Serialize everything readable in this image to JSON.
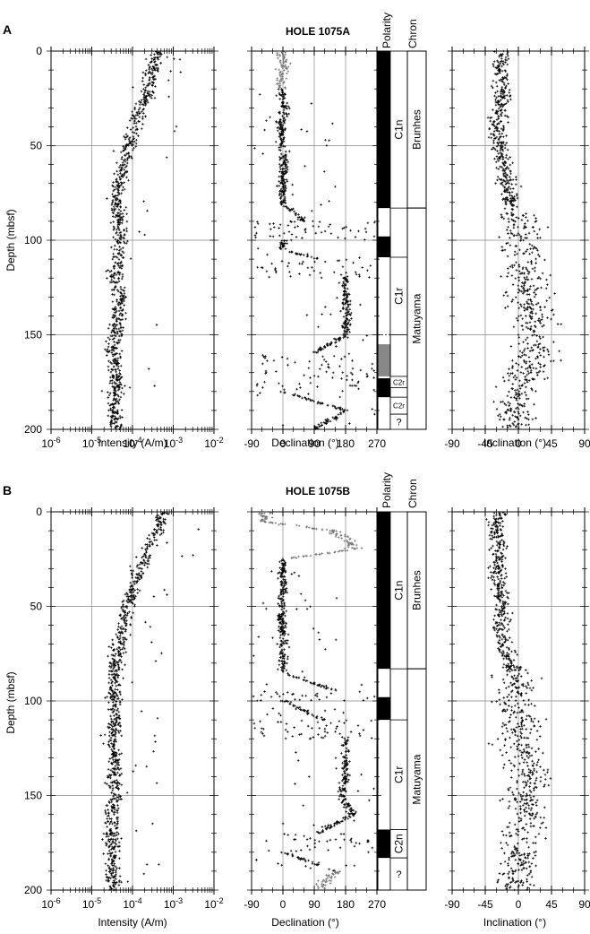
{
  "chart_data": [
    {
      "panel_letter": "A",
      "title": "HOLE 1075A",
      "type": "scatter",
      "ylabel": "Depth (mbsf)",
      "ylim": [
        0,
        200
      ],
      "yticks": [
        "0",
        "50",
        "100",
        "150",
        "200"
      ],
      "intensity": {
        "xlabel": "Intensity (A/m)",
        "scale": "log",
        "xlim": [
          1e-06,
          0.01
        ],
        "xticks": [
          "10-6",
          "10-5",
          "10-4",
          "10-3",
          "10-2"
        ],
        "trend": [
          [
            0,
            0.0004
          ],
          [
            10,
            0.0003
          ],
          [
            20,
            0.00025
          ],
          [
            30,
            0.00016
          ],
          [
            40,
            0.00011
          ],
          [
            50,
            8e-05
          ],
          [
            60,
            6e-05
          ],
          [
            70,
            4.5e-05
          ],
          [
            80,
            4e-05
          ],
          [
            90,
            5e-05
          ],
          [
            100,
            5e-05
          ],
          [
            110,
            4.5e-05
          ],
          [
            120,
            3.5e-05
          ],
          [
            130,
            5e-05
          ],
          [
            140,
            4.5e-05
          ],
          [
            150,
            4e-05
          ],
          [
            160,
            3.5e-05
          ],
          [
            170,
            4e-05
          ],
          [
            180,
            4e-05
          ],
          [
            190,
            3.5e-05
          ],
          [
            200,
            4e-05
          ]
        ]
      },
      "declination": {
        "xlabel": "Declination (°)",
        "xlim": [
          -90,
          270
        ],
        "xticks": [
          "-90",
          "0",
          "90",
          "180",
          "270"
        ],
        "trend": [
          [
            0,
            0,
            "g"
          ],
          [
            15,
            0,
            "g"
          ],
          [
            20,
            -5,
            "b"
          ],
          [
            30,
            5,
            "b"
          ],
          [
            40,
            -5,
            "b"
          ],
          [
            50,
            0,
            "b"
          ],
          [
            60,
            5,
            "b"
          ],
          [
            70,
            0,
            "b"
          ],
          [
            80,
            0,
            "b"
          ],
          [
            90,
            60,
            "s"
          ],
          [
            100,
            0,
            "b"
          ],
          [
            105,
            0,
            "b"
          ],
          [
            110,
            100,
            "s"
          ],
          [
            120,
            180,
            "b"
          ],
          [
            130,
            180,
            "b"
          ],
          [
            140,
            185,
            "b"
          ],
          [
            150,
            180,
            "b"
          ],
          [
            160,
            90,
            "s"
          ],
          [
            170,
            120,
            "s"
          ],
          [
            180,
            0,
            "b"
          ],
          [
            190,
            180,
            "b"
          ],
          [
            200,
            90,
            "s"
          ]
        ]
      },
      "inclination": {
        "xlabel": "Inclination (°)",
        "xlim": [
          -90,
          90
        ],
        "xticks": [
          "-90",
          "-45",
          "0",
          "45",
          "90"
        ],
        "trend": [
          [
            0,
            -20
          ],
          [
            10,
            -25
          ],
          [
            20,
            -22
          ],
          [
            30,
            -25
          ],
          [
            40,
            -30
          ],
          [
            50,
            -25
          ],
          [
            60,
            -20
          ],
          [
            70,
            -15
          ],
          [
            80,
            -10
          ],
          [
            90,
            5
          ],
          [
            100,
            5
          ],
          [
            110,
            5
          ],
          [
            120,
            15
          ],
          [
            130,
            10
          ],
          [
            140,
            20
          ],
          [
            150,
            15
          ],
          [
            160,
            25
          ],
          [
            170,
            10
          ],
          [
            180,
            0
          ],
          [
            190,
            -5
          ],
          [
            200,
            0
          ]
        ]
      },
      "polarity": {
        "label": "Polarity",
        "blocks": [
          {
            "from": 0,
            "to": 83,
            "state": "normal"
          },
          {
            "from": 98,
            "to": 109,
            "state": "normal"
          },
          {
            "from": 155,
            "to": 172,
            "state": "uncertain"
          },
          {
            "from": 173,
            "to": 183,
            "state": "normal"
          }
        ],
        "dashed_line_depth": 150
      },
      "chron": {
        "label": "Chron",
        "subchrons": [
          {
            "label": "C1n",
            "from": 0,
            "to": 83
          },
          {
            "label": "C1r",
            "from": 109,
            "to": 150
          },
          {
            "label": "C2r",
            "from": 172,
            "to": 178
          },
          {
            "label": "C2r",
            "from": 183,
            "to": 192
          },
          {
            "label": "?",
            "from": 192,
            "to": 200
          }
        ],
        "chrons": [
          {
            "label": "Brunhes",
            "from": 0,
            "to": 83
          },
          {
            "label": "Matuyama",
            "from": 83,
            "to": 200
          }
        ]
      }
    },
    {
      "panel_letter": "B",
      "title": "HOLE 1075B",
      "type": "scatter",
      "ylabel": "Depth (mbsf)",
      "ylim": [
        0,
        200
      ],
      "yticks": [
        "0",
        "50",
        "100",
        "150",
        "200"
      ],
      "intensity": {
        "xlabel": "Intensity (A/m)",
        "scale": "log",
        "xlim": [
          1e-06,
          0.01
        ],
        "xticks": [
          "10-6",
          "10-5",
          "10-4",
          "10-3",
          "10-2"
        ],
        "trend": [
          [
            0,
            0.0006
          ],
          [
            10,
            0.0004
          ],
          [
            20,
            0.00025
          ],
          [
            30,
            0.00015
          ],
          [
            40,
            0.00011
          ],
          [
            50,
            8e-05
          ],
          [
            60,
            6e-05
          ],
          [
            70,
            5e-05
          ],
          [
            80,
            4e-05
          ],
          [
            90,
            3.5e-05
          ],
          [
            100,
            3.5e-05
          ],
          [
            110,
            4e-05
          ],
          [
            120,
            3.5e-05
          ],
          [
            130,
            4e-05
          ],
          [
            140,
            3.5e-05
          ],
          [
            150,
            4e-05
          ],
          [
            160,
            3e-05
          ],
          [
            170,
            3e-05
          ],
          [
            180,
            3.5e-05
          ],
          [
            190,
            3e-05
          ],
          [
            200,
            3.5e-05
          ]
        ]
      },
      "declination": {
        "xlabel": "Declination (°)",
        "xlim": [
          -90,
          270
        ],
        "xticks": [
          "-90",
          "0",
          "90",
          "180",
          "270"
        ],
        "trend": [
          [
            0,
            -50,
            "g"
          ],
          [
            5,
            -60,
            "g"
          ],
          [
            10,
            140,
            "g"
          ],
          [
            15,
            190,
            "g"
          ],
          [
            20,
            200,
            "g"
          ],
          [
            25,
            0,
            "b"
          ],
          [
            35,
            0,
            "b"
          ],
          [
            45,
            0,
            "b"
          ],
          [
            55,
            -5,
            "b"
          ],
          [
            65,
            0,
            "b"
          ],
          [
            75,
            0,
            "b"
          ],
          [
            85,
            0,
            "b"
          ],
          [
            95,
            160,
            "s"
          ],
          [
            100,
            0,
            "b"
          ],
          [
            110,
            120,
            "s"
          ],
          [
            120,
            180,
            "b"
          ],
          [
            130,
            180,
            "b"
          ],
          [
            140,
            180,
            "b"
          ],
          [
            150,
            170,
            "b"
          ],
          [
            160,
            200,
            "b"
          ],
          [
            170,
            100,
            "s"
          ],
          [
            180,
            0,
            "b"
          ],
          [
            190,
            150,
            "g"
          ],
          [
            200,
            100,
            "g"
          ]
        ]
      },
      "inclination": {
        "xlabel": "Inclination (°)",
        "xlim": [
          -90,
          90
        ],
        "xticks": [
          "-90",
          "-45",
          "0",
          "45",
          "90"
        ],
        "trend": [
          [
            0,
            -25
          ],
          [
            10,
            -30
          ],
          [
            20,
            -25
          ],
          [
            30,
            -30
          ],
          [
            40,
            -25
          ],
          [
            50,
            -20
          ],
          [
            60,
            -25
          ],
          [
            70,
            -20
          ],
          [
            80,
            -10
          ],
          [
            90,
            0
          ],
          [
            100,
            -10
          ],
          [
            110,
            5
          ],
          [
            120,
            0
          ],
          [
            130,
            10
          ],
          [
            140,
            15
          ],
          [
            150,
            5
          ],
          [
            160,
            20
          ],
          [
            170,
            0
          ],
          [
            180,
            5
          ],
          [
            190,
            0
          ],
          [
            200,
            -5
          ]
        ]
      },
      "polarity": {
        "label": "Polarity",
        "blocks": [
          {
            "from": 0,
            "to": 83,
            "state": "normal"
          },
          {
            "from": 98,
            "to": 110,
            "state": "normal"
          },
          {
            "from": 168,
            "to": 183,
            "state": "normal"
          }
        ],
        "dashed_line_depth": null
      },
      "chron": {
        "label": "Chron",
        "subchrons": [
          {
            "label": "C1n",
            "from": 0,
            "to": 83
          },
          {
            "label": "C1r",
            "from": 110,
            "to": 168
          },
          {
            "label": "C2n",
            "from": 168,
            "to": 183
          },
          {
            "label": "?",
            "from": 183,
            "to": 200
          }
        ],
        "chrons": [
          {
            "label": "Brunhes",
            "from": 0,
            "to": 83
          },
          {
            "label": "Matuyama",
            "from": 83,
            "to": 200
          }
        ]
      }
    }
  ]
}
